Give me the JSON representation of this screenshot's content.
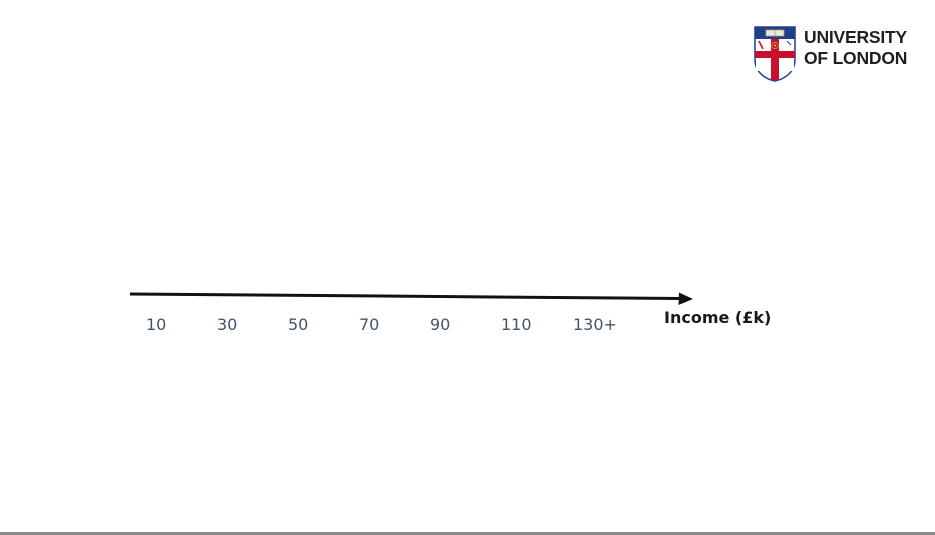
{
  "logo": {
    "line1": "UNIVERSITY",
    "line2": "OF LONDON",
    "icon": "university-crest-icon",
    "colors": {
      "navy": "#1d3f8c",
      "red": "#c8102e",
      "gold": "#c9a227"
    }
  },
  "axis": {
    "title": "Income (£k)",
    "ticks": [
      "10",
      "30",
      "50",
      "70",
      "90",
      "110",
      "130+"
    ],
    "arrow_color": "#111111",
    "tick_color": "#44546a"
  }
}
